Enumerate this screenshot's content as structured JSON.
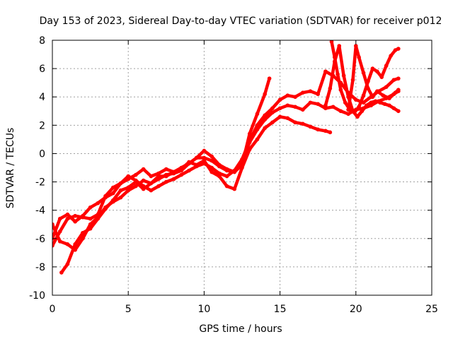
{
  "chart_data": {
    "type": "scatter",
    "title": "Day 153 of 2023, Sidereal Day-to-day VTEC variation (SDTVAR) for receiver p012",
    "xlabel": "GPS time / hours",
    "ylabel": "SDTVAR / TECUs",
    "xlim": [
      0,
      25
    ],
    "ylim": [
      -10,
      8
    ],
    "xticks": [
      0,
      5,
      10,
      15,
      20,
      25
    ],
    "yticks": [
      -10,
      -8,
      -6,
      -4,
      -2,
      0,
      2,
      4,
      6,
      8
    ],
    "grid": true,
    "legend": "none",
    "color": "#ff0000",
    "series": [
      {
        "x": [
          0,
          0.5,
          1,
          1.5,
          2,
          2.5,
          3,
          3.5,
          4,
          4.5,
          5,
          5.5,
          6,
          6.5,
          7,
          7.5,
          8,
          8.5,
          9,
          9.5,
          10,
          10.5,
          11,
          11.5,
          12,
          12.5,
          13,
          13.5,
          14,
          14.3
        ],
        "y": [
          -6.5,
          -5.5,
          -4.6,
          -4.4,
          -4.5,
          -4.6,
          -4.3,
          -3.0,
          -2.4,
          -2.1,
          -1.8,
          -1.5,
          -1.1,
          -1.6,
          -1.4,
          -1.1,
          -1.3,
          -1.0,
          -0.7,
          -0.3,
          -0.3,
          -0.5,
          -0.9,
          -1.2,
          -1.3,
          -0.8,
          1.4,
          2.8,
          4.2,
          5.3
        ]
      },
      {
        "x": [
          0,
          0.5,
          1,
          1.5,
          2,
          2.5,
          3,
          3.5,
          4,
          4.5,
          5,
          5.5,
          6,
          6.5,
          7,
          7.5,
          8,
          8.5,
          9,
          9.5,
          10,
          10.5,
          11,
          11.5,
          12,
          12.5,
          13,
          13.5,
          14,
          14.5,
          15,
          15.5,
          16,
          16.5,
          17,
          17.5,
          18,
          18.3
        ],
        "y": [
          -5.0,
          -6.2,
          -6.4,
          -6.8,
          -6.0,
          -5.0,
          -4.5,
          -3.8,
          -3.4,
          -3.1,
          -2.6,
          -2.3,
          -1.9,
          -2.1,
          -1.6,
          -1.6,
          -1.3,
          -1.1,
          -0.6,
          -0.8,
          -0.5,
          -1.3,
          -1.6,
          -2.3,
          -2.5,
          -1.0,
          0.3,
          1.0,
          1.8,
          2.2,
          2.6,
          2.5,
          2.2,
          2.1,
          1.9,
          1.7,
          1.6,
          1.5
        ]
      },
      {
        "x": [
          0.6,
          1,
          1.5,
          2,
          2.5,
          3,
          3.5,
          4,
          4.5,
          5,
          5.5,
          6,
          6.5,
          7,
          7.5,
          8,
          8.5,
          9,
          9.5,
          10,
          10.5,
          11,
          11.5,
          12,
          12.5,
          13,
          13.5,
          14,
          14.5,
          15,
          15.5,
          16,
          16.5,
          17,
          17.5,
          18,
          18.5,
          19,
          19.5,
          20,
          20.5,
          21,
          21.5,
          22,
          22.5,
          22.8
        ],
        "y": [
          -8.4,
          -7.8,
          -6.4,
          -5.6,
          -5.3,
          -4.6,
          -3.9,
          -3.3,
          -2.6,
          -2.4,
          -2.0,
          -2.5,
          -2.1,
          -1.8,
          -1.5,
          -1.4,
          -1.2,
          -0.7,
          -0.3,
          0.2,
          -0.2,
          -0.8,
          -1.1,
          -1.3,
          -0.6,
          0.8,
          1.7,
          2.4,
          2.9,
          3.2,
          3.4,
          3.3,
          3.1,
          3.6,
          3.5,
          3.2,
          3.3,
          3.0,
          2.8,
          3.1,
          3.2,
          3.4,
          3.7,
          3.9,
          4.2,
          4.4
        ]
      },
      {
        "x": [
          0,
          0.5,
          1,
          1.5,
          2,
          2.5,
          3,
          3.5,
          4,
          4.5,
          5,
          5.5,
          6,
          6.5,
          7,
          7.5,
          8,
          8.5,
          9,
          9.5,
          10,
          10.5,
          11,
          11.5,
          12,
          12.5,
          13,
          13.5,
          14,
          14.5,
          15,
          15.5,
          16,
          16.5,
          17,
          17.5,
          18,
          18.5,
          19,
          19.5,
          20,
          20.5,
          21,
          21.5,
          22,
          22.5,
          22.8
        ],
        "y": [
          -6.0,
          -4.6,
          -4.3,
          -4.8,
          -4.4,
          -3.8,
          -3.5,
          -3.1,
          -2.8,
          -2.1,
          -1.6,
          -1.9,
          -2.3,
          -2.6,
          -2.3,
          -2.0,
          -1.8,
          -1.5,
          -1.2,
          -0.9,
          -0.7,
          -1.0,
          -1.4,
          -1.6,
          -1.2,
          -0.4,
          0.9,
          2.0,
          2.7,
          3.2,
          3.8,
          4.1,
          4.0,
          4.3,
          4.4,
          4.2,
          5.8,
          5.5,
          5.0,
          4.3,
          3.8,
          3.6,
          4.0,
          4.4,
          4.7,
          5.2,
          5.3
        ]
      },
      {
        "x": [
          18.0,
          18.3,
          18.6,
          18.9,
          19.2,
          19.5,
          19.8,
          20.1,
          20.4,
          20.7,
          21.0,
          21.3,
          21.6,
          21.9,
          22.2,
          22.5,
          22.8
        ],
        "y": [
          3.4,
          4.6,
          6.5,
          7.6,
          5.5,
          4.0,
          3.0,
          2.6,
          3.0,
          3.4,
          3.6,
          3.7,
          3.6,
          3.5,
          3.4,
          3.2,
          3.0
        ]
      },
      {
        "x": [
          18.4,
          18.6,
          18.8,
          19.0,
          19.3,
          19.6,
          19.9,
          20.2,
          20.5,
          20.8,
          21.1,
          21.4,
          21.7,
          22.0,
          22.3,
          22.6,
          22.8
        ],
        "y": [
          7.9,
          6.8,
          5.6,
          4.5,
          3.6,
          3.1,
          2.9,
          3.3,
          4.1,
          5.1,
          6.0,
          5.8,
          5.4,
          6.2,
          6.9,
          7.3,
          7.4
        ]
      },
      {
        "x": [
          19.5,
          19.8,
          20.0,
          20.2,
          20.5,
          20.8,
          21.1,
          21.4,
          21.8,
          22.2,
          22.6,
          22.8
        ],
        "y": [
          3.1,
          5.2,
          7.6,
          6.8,
          5.7,
          4.6,
          4.0,
          4.4,
          4.1,
          3.9,
          4.3,
          4.5
        ]
      }
    ]
  }
}
